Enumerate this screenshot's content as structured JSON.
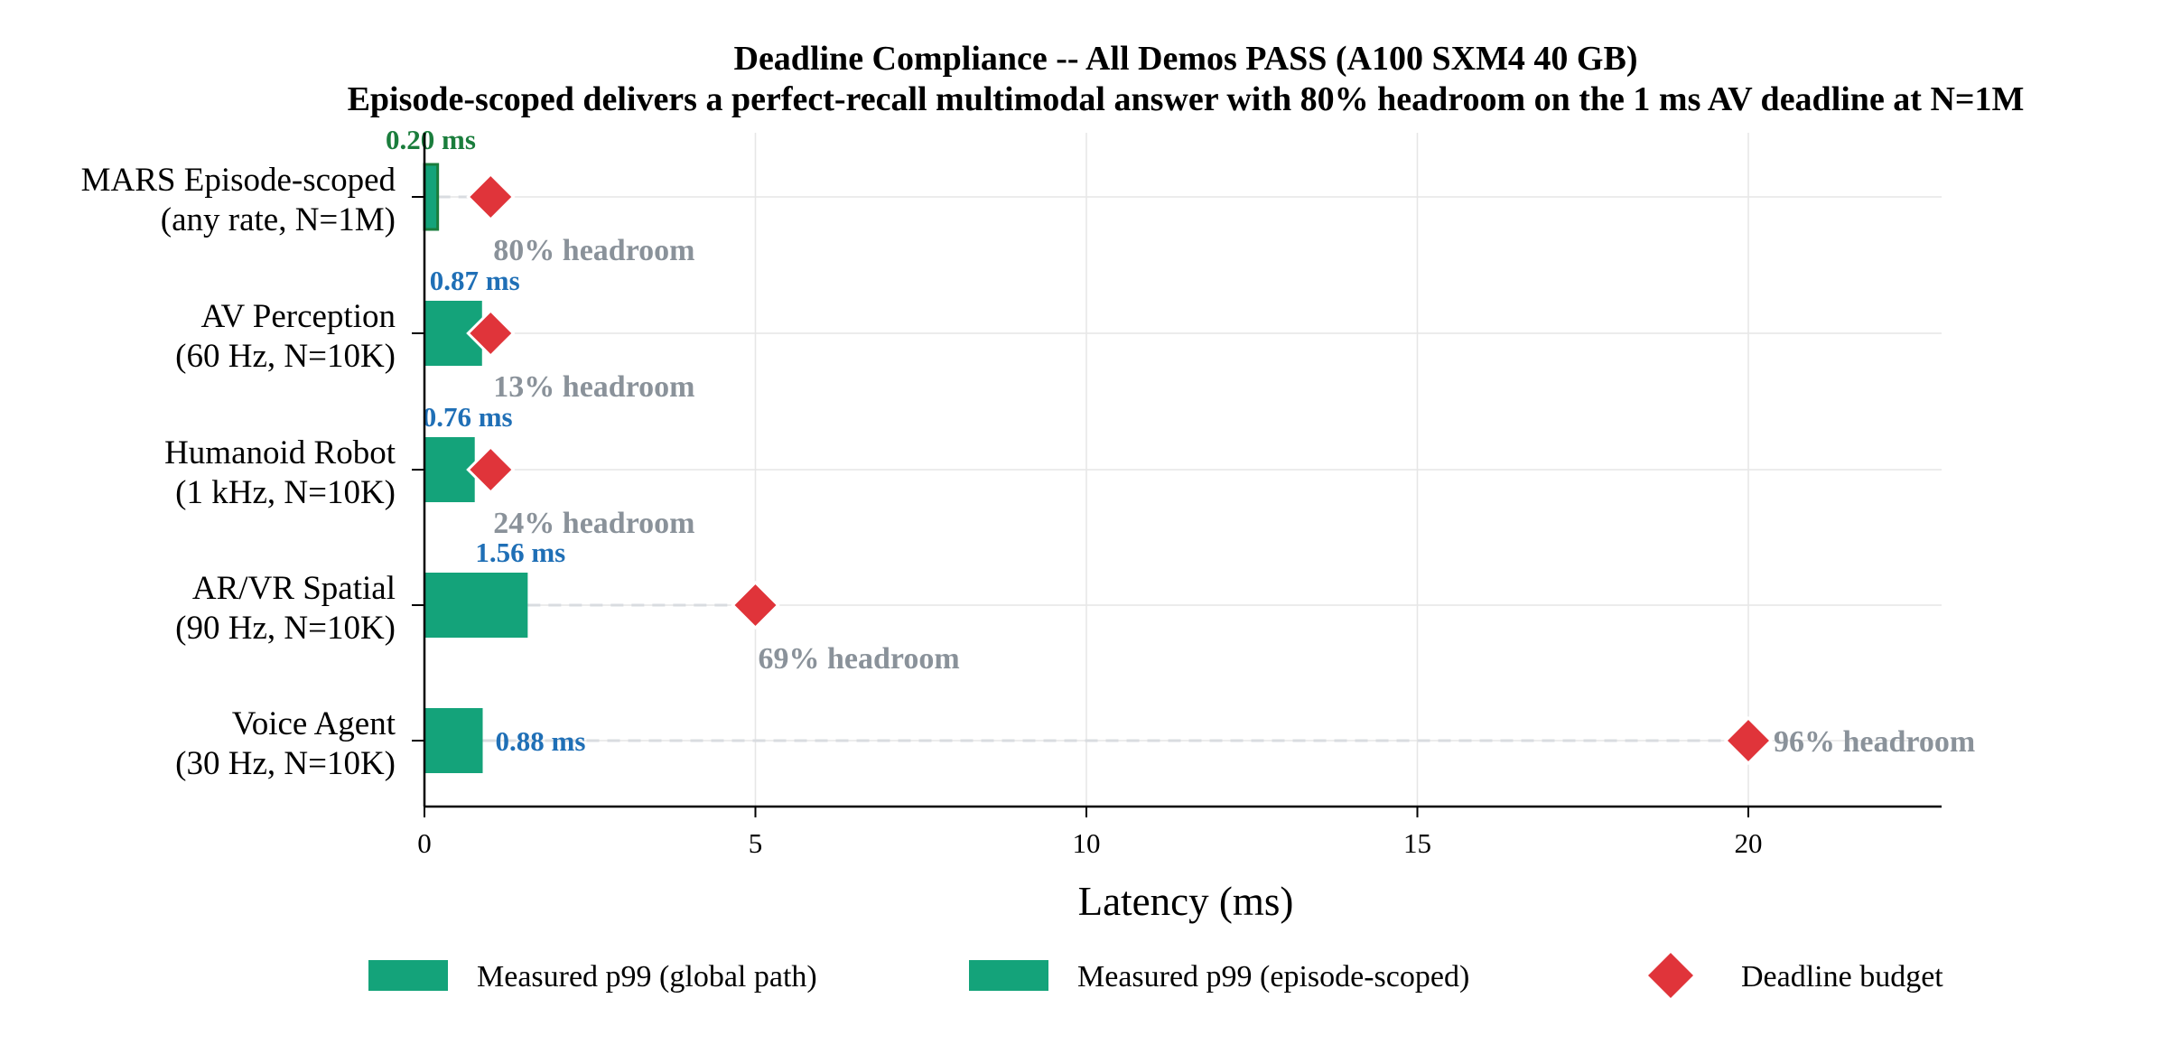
{
  "chart_data": {
    "type": "bar",
    "orientation": "horizontal",
    "title": "Deadline Compliance -- All Demos PASS (A100 SXM4 40 GB)",
    "subtitle": "Episode-scoped delivers a perfect-recall multimodal answer with 80% headroom on the 1 ms AV deadline at N=1M",
    "xlabel": "Latency (ms)",
    "xlim": [
      0,
      23
    ],
    "xticks": [
      0,
      5,
      10,
      15,
      20
    ],
    "grid": true,
    "legend_position": "bottom",
    "categories": [
      [
        "MARS Episode-scoped",
        "(any rate, N=1M)"
      ],
      [
        "AV Perception",
        "(60 Hz, N=10K)"
      ],
      [
        "Humanoid Robot",
        "(1 kHz, N=10K)"
      ],
      [
        "AR/VR Spatial",
        "(90 Hz, N=10K)"
      ],
      [
        "Voice Agent",
        "(30 Hz, N=10K)"
      ]
    ],
    "series": [
      {
        "name": "Measured p99 (global path)",
        "color": "#14a37a",
        "values": [
          null,
          0.87,
          0.76,
          1.56,
          0.88
        ],
        "labels": [
          null,
          "0.87 ms",
          "0.76 ms",
          "1.56 ms",
          "0.88 ms"
        ]
      },
      {
        "name": "Measured p99 (episode-scoped)",
        "color": "#14a37a",
        "edge_color": "#1a7d3c",
        "values": [
          0.2,
          null,
          null,
          null,
          null
        ],
        "labels": [
          "0.20 ms",
          null,
          null,
          null,
          null
        ]
      },
      {
        "name": "Deadline budget",
        "color": "#e0343a",
        "marker": "diamond",
        "values": [
          1,
          1,
          1,
          5,
          20
        ]
      }
    ],
    "headroom_labels": [
      "80% headroom",
      "13% headroom",
      "24% headroom",
      "69% headroom",
      "96% headroom"
    ],
    "colors": {
      "bar": "#14a37a",
      "episode_edge": "#1a7d3c",
      "episode_label": "#1a7d3c",
      "value_label": "#1f6fb6",
      "deadline": "#e0343a",
      "headroom": "#8a929a",
      "connector": "#d9dce0",
      "grid": "#e6e6e6"
    }
  }
}
